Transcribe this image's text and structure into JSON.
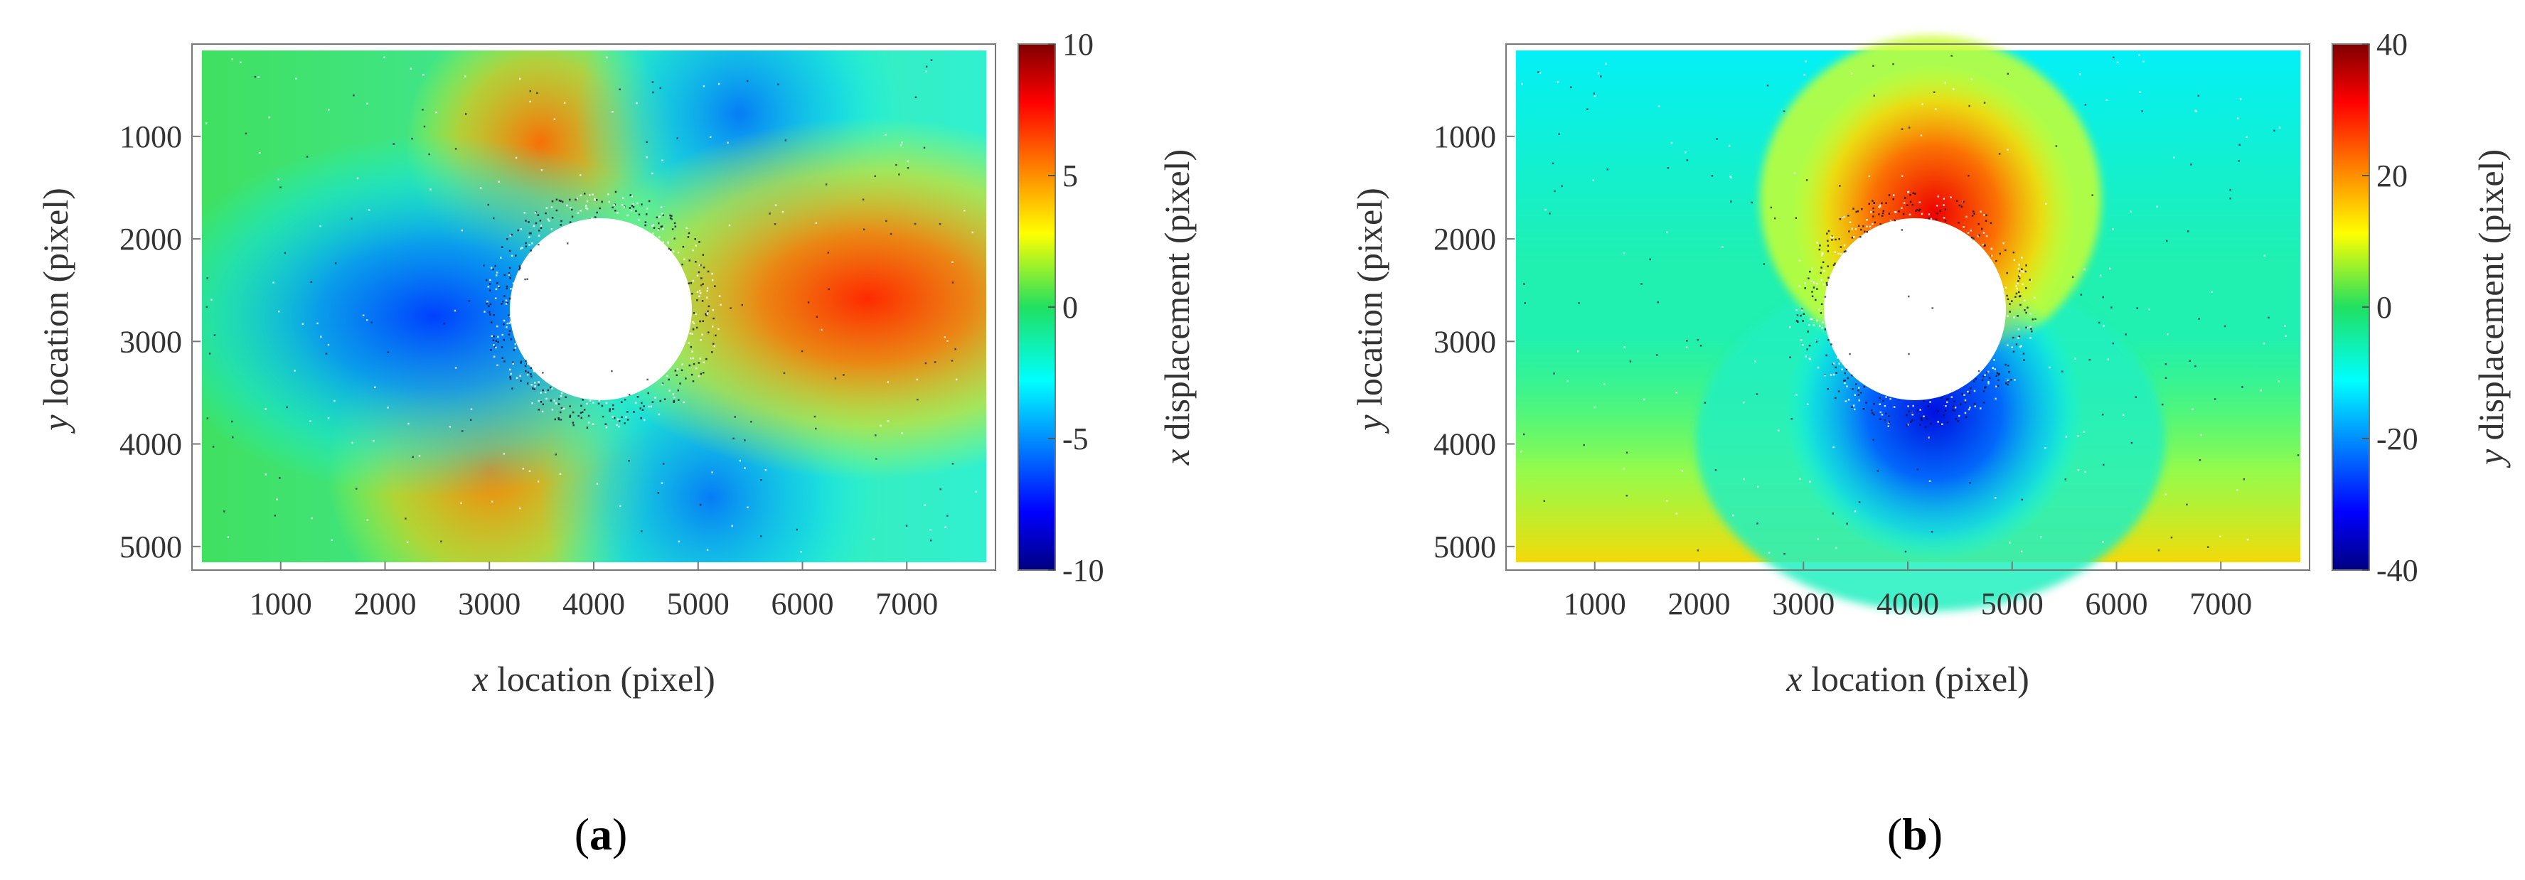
{
  "chart_data": [
    {
      "type": "heatmap",
      "panel_label": {
        "open": "(",
        "letter": "a",
        "close": ")"
      },
      "xlabel": {
        "var": "x",
        "text": " location (pixel)"
      },
      "ylabel": {
        "var": "y",
        "text": " location (pixel)"
      },
      "xticks": [
        1000,
        2000,
        3000,
        4000,
        5000,
        6000,
        7000
      ],
      "yticks": [
        1000,
        2000,
        3000,
        4000,
        5000
      ],
      "xlim": [
        150,
        7850
      ],
      "ylim": [
        100,
        5230
      ],
      "colorbar": {
        "label": {
          "var": "x",
          "text": " displacement (pixel)"
        },
        "ticks": [
          "10",
          "5",
          "0",
          "-5",
          "-10"
        ],
        "range": [
          -10,
          10
        ],
        "colormap": "jet"
      },
      "hole": {
        "cx": 4050,
        "cy": 2650,
        "r": 900
      },
      "field": "x-displacement"
    },
    {
      "type": "heatmap",
      "panel_label": {
        "open": "(",
        "letter": "b",
        "close": ")"
      },
      "xlabel": {
        "var": "x",
        "text": " location (pixel)"
      },
      "ylabel": {
        "var": "y",
        "text": " location (pixel)"
      },
      "xticks": [
        1000,
        2000,
        3000,
        4000,
        5000,
        6000,
        7000
      ],
      "yticks": [
        1000,
        2000,
        3000,
        4000,
        5000
      ],
      "xlim": [
        150,
        7850
      ],
      "ylim": [
        100,
        5230
      ],
      "colorbar": {
        "label": {
          "var": "y",
          "text": " displacement (pixel)"
        },
        "ticks": [
          "40",
          "20",
          "0",
          "-20",
          "-40"
        ],
        "range": [
          -40,
          40
        ],
        "colormap": "jet"
      },
      "hole": {
        "cx": 4050,
        "cy": 2650,
        "r": 900
      },
      "field": "y-displacement"
    }
  ]
}
